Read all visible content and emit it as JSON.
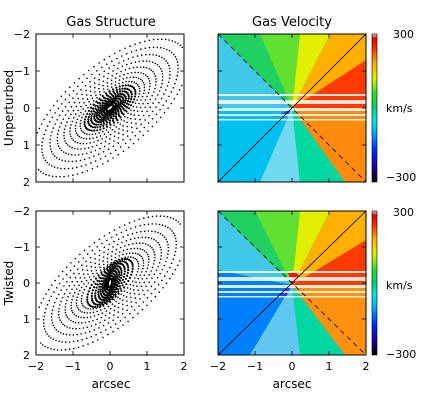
{
  "figure": {
    "col_titles": [
      "Gas Structure",
      "Gas Velocity"
    ],
    "row_labels": [
      "Unperturbed",
      "Twisted"
    ],
    "x_label": "arcsec",
    "x_ticks": [
      "−2",
      "−1",
      "0",
      "1",
      "2"
    ],
    "y_ticks": [
      "2",
      "1",
      "0",
      "−1",
      "−2"
    ],
    "colorbar": {
      "max_label": "300",
      "min_label": "−300",
      "unit_label": "km/s"
    }
  },
  "chart_data": [
    {
      "type": "other",
      "panel": "Unperturbed / Gas Structure",
      "title": "Gas Structure",
      "ylabel": "Unperturbed",
      "xlim": [
        -2,
        2
      ],
      "ylim": [
        -2,
        2
      ],
      "description": "dotted concentric ellipses (gas orbits) aligned with a ~40 degree position angle"
    },
    {
      "type": "heatmap",
      "panel": "Unperturbed / Gas Velocity",
      "title": "Gas Velocity",
      "xlim": [
        -2,
        2
      ],
      "ylim": [
        -2,
        2
      ],
      "clim": [
        -300,
        300
      ],
      "colorbar_unit": "km/s",
      "description": "velocity field, red (receding) upper right, blue (approaching) lower left; solid and dashed diagonal lines; horizontal white slit stripes"
    },
    {
      "type": "other",
      "panel": "Twisted / Gas Structure",
      "title": "",
      "ylabel": "Twisted",
      "xlabel": "arcsec",
      "xlim": [
        -2,
        2
      ],
      "ylim": [
        -2,
        2
      ],
      "description": "dotted ellipses whose inner orbits are twisted toward vertical"
    },
    {
      "type": "heatmap",
      "panel": "Twisted / Gas Velocity",
      "title": "",
      "xlabel": "arcsec",
      "xlim": [
        -2,
        2
      ],
      "ylim": [
        -2,
        2
      ],
      "clim": [
        -300,
        300
      ],
      "colorbar_unit": "km/s",
      "description": "twisted velocity field with solid and dashed diagonal lines and horizontal white slit stripes"
    }
  ]
}
